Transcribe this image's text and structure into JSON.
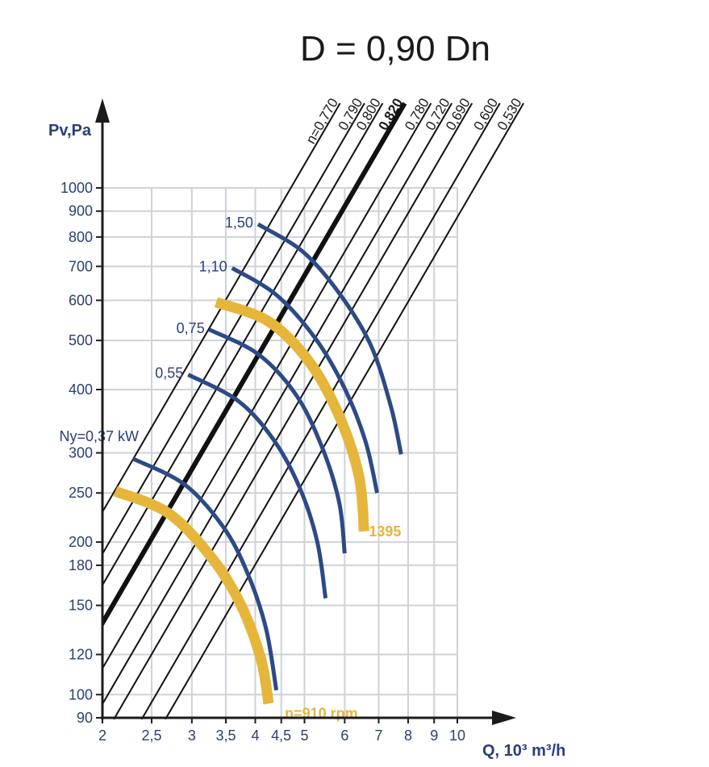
{
  "chart_data": {
    "type": "line",
    "title": "D = 0,90 Dn",
    "ylabel": "Pv,Pa",
    "xlabel": "Q, 10³ m³/h",
    "x_scale": "log",
    "y_scale": "log",
    "xlim": [
      2,
      10
    ],
    "ylim": [
      90,
      1000
    ],
    "x_ticks": [
      {
        "value": 2,
        "label": "2"
      },
      {
        "value": 2.5,
        "label": "2,5"
      },
      {
        "value": 3,
        "label": "3"
      },
      {
        "value": 3.5,
        "label": "3,5"
      },
      {
        "value": 4,
        "label": "4"
      },
      {
        "value": 4.5,
        "label": "4,5"
      },
      {
        "value": 5,
        "label": "5"
      },
      {
        "value": 6,
        "label": "6"
      },
      {
        "value": 7,
        "label": "7"
      },
      {
        "value": 8,
        "label": "8"
      },
      {
        "value": 9,
        "label": "9"
      },
      {
        "value": 10,
        "label": "10"
      }
    ],
    "y_ticks": [
      {
        "value": 90,
        "label": "90"
      },
      {
        "value": 100,
        "label": "100"
      },
      {
        "value": 120,
        "label": "120"
      },
      {
        "value": 150,
        "label": "150"
      },
      {
        "value": 180,
        "label": "180"
      },
      {
        "value": 200,
        "label": "200"
      },
      {
        "value": 250,
        "label": "250"
      },
      {
        "value": 300,
        "label": "300"
      },
      {
        "value": 400,
        "label": "400"
      },
      {
        "value": 500,
        "label": "500"
      },
      {
        "value": 600,
        "label": "600"
      },
      {
        "value": 700,
        "label": "700"
      },
      {
        "value": 800,
        "label": "800"
      },
      {
        "value": 900,
        "label": "900"
      },
      {
        "value": 1000,
        "label": "1000"
      }
    ],
    "efficiency_lines": [
      {
        "label": "n=0,770",
        "q_at_1000": 4.7,
        "bold": false
      },
      {
        "label": "0,790",
        "q_at_1000": 5.25,
        "bold": false
      },
      {
        "label": "0,800",
        "q_at_1000": 5.7,
        "bold": false
      },
      {
        "label": "0,820",
        "q_at_1000": 6.3,
        "bold": true
      },
      {
        "label": "0,780",
        "q_at_1000": 7.1,
        "bold": false
      },
      {
        "label": "0,720",
        "q_at_1000": 7.8,
        "bold": false
      },
      {
        "label": "0,690",
        "q_at_1000": 8.55,
        "bold": false
      },
      {
        "label": "0,600",
        "q_at_1000": 9.7,
        "bold": false
      },
      {
        "label": "0,530",
        "q_at_1000": 10.8,
        "bold": false
      }
    ],
    "power_curves": [
      {
        "label": "Ny=0,37 kW",
        "points": [
          [
            2.3,
            292
          ],
          [
            2.9,
            260
          ],
          [
            3.45,
            215
          ],
          [
            3.85,
            175
          ],
          [
            4.2,
            135
          ],
          [
            4.4,
            102
          ]
        ]
      },
      {
        "label": "0,55",
        "points": [
          [
            2.95,
            428
          ],
          [
            3.7,
            380
          ],
          [
            4.35,
            318
          ],
          [
            4.9,
            255
          ],
          [
            5.3,
            200
          ],
          [
            5.5,
            155
          ]
        ]
      },
      {
        "label": "0,75",
        "points": [
          [
            3.25,
            525
          ],
          [
            4.05,
            470
          ],
          [
            4.8,
            392
          ],
          [
            5.4,
            310
          ],
          [
            5.85,
            240
          ],
          [
            6.0,
            190
          ]
        ]
      },
      {
        "label": "1,10",
        "points": [
          [
            3.6,
            695
          ],
          [
            4.4,
            615
          ],
          [
            5.25,
            505
          ],
          [
            6.0,
            402
          ],
          [
            6.6,
            315
          ],
          [
            6.95,
            250
          ]
        ]
      },
      {
        "label": "1,50",
        "points": [
          [
            4.05,
            848
          ],
          [
            4.95,
            750
          ],
          [
            5.85,
            620
          ],
          [
            6.75,
            490
          ],
          [
            7.4,
            370
          ],
          [
            7.75,
            298
          ]
        ]
      }
    ],
    "speed_curves": [
      {
        "label": "n=910 rpm",
        "points": [
          [
            2.12,
            252
          ],
          [
            2.7,
            228
          ],
          [
            3.3,
            185
          ],
          [
            3.75,
            150
          ],
          [
            4.1,
            118
          ],
          [
            4.25,
            96
          ]
        ]
      },
      {
        "label": "1395",
        "points": [
          [
            3.35,
            595
          ],
          [
            4.25,
            545
          ],
          [
            5.1,
            455
          ],
          [
            5.85,
            355
          ],
          [
            6.4,
            270
          ],
          [
            6.55,
            210
          ]
        ]
      }
    ],
    "colors": {
      "power_curve": "#2d4a87",
      "speed_curve": "#e6b63b",
      "efficiency_line": "#111111",
      "grid": "#cfd2d8",
      "tick_text": "#2a3f7a"
    }
  }
}
